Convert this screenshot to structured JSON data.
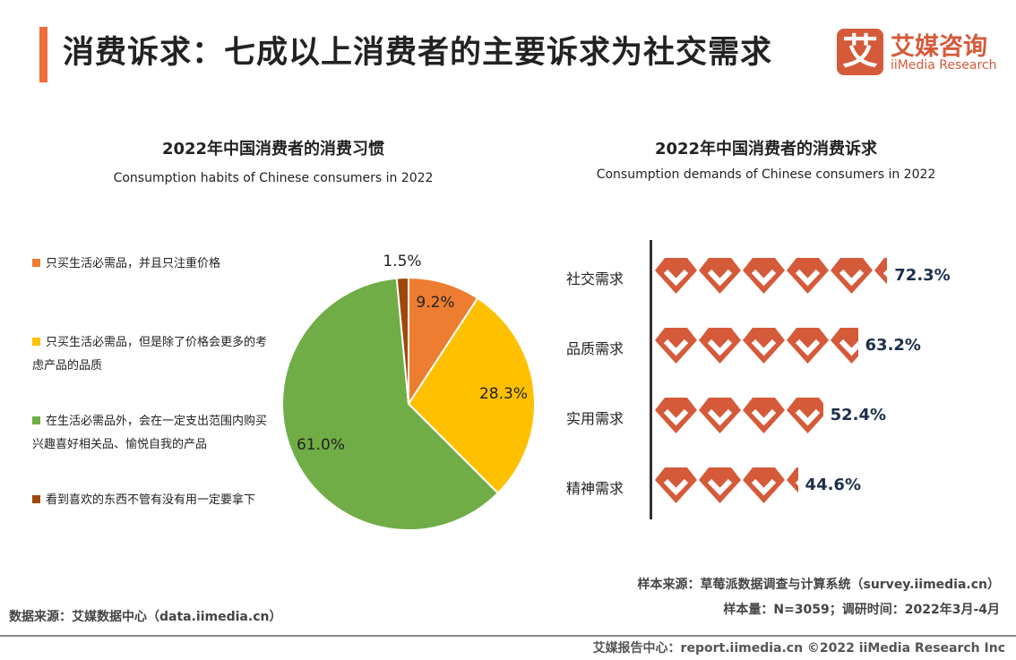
{
  "header": {
    "title": "消费诉求：七成以上消费者的主要诉求为社交需求",
    "logo_mark": "艾",
    "logo_cn": "艾媒咨询",
    "logo_en": "iiMedia Research"
  },
  "chart_data": [
    {
      "type": "pie",
      "title": "2022年中国消费者的消费习惯",
      "subtitle": "Consumption habits of Chinese consumers in 2022",
      "series": [
        {
          "name": "只买生活必需品，并且只注重价格",
          "value": 9.2,
          "label": "9.2%",
          "color": "#ed7d31"
        },
        {
          "name": "只买生活必需品，但是除了价格会更多的考虑产品的品质",
          "value": 28.3,
          "label": "28.3%",
          "color": "#ffc000"
        },
        {
          "name": "在生活必需品外，会在一定支出范围内购买兴趣喜好相关品、愉悦自我的产品",
          "value": 61.0,
          "label": "61.0%",
          "color": "#70ad47"
        },
        {
          "name": "看到喜欢的东西不管有没有用一定要拿下",
          "value": 1.5,
          "label": "1.5%",
          "color": "#9e480e"
        }
      ],
      "legend": "left"
    },
    {
      "type": "bar",
      "title": "2022年中国消费者的消费诉求",
      "subtitle": "Consumption demands of Chinese consumers in 2022",
      "categories": [
        "社交需求",
        "品质需求",
        "实用需求",
        "精神需求"
      ],
      "values": [
        72.3,
        63.2,
        52.4,
        44.6
      ],
      "labels": [
        "72.3%",
        "63.2%",
        "52.4%",
        "44.6%"
      ],
      "color": "#d55a3a",
      "orientation": "horizontal",
      "mark": "diamond-icon"
    }
  ],
  "footer": {
    "sample_source": "样本来源：草莓派数据调查与计算系统（survey.iimedia.cn）",
    "sample_size": "样本量：N=3059；调研时间：2022年3月-4月",
    "data_source": "数据来源：艾媒数据中心（data.iimedia.cn）",
    "report": "艾媒报告中心：report.iimedia.cn  ©2022  iiMedia Research  Inc"
  }
}
